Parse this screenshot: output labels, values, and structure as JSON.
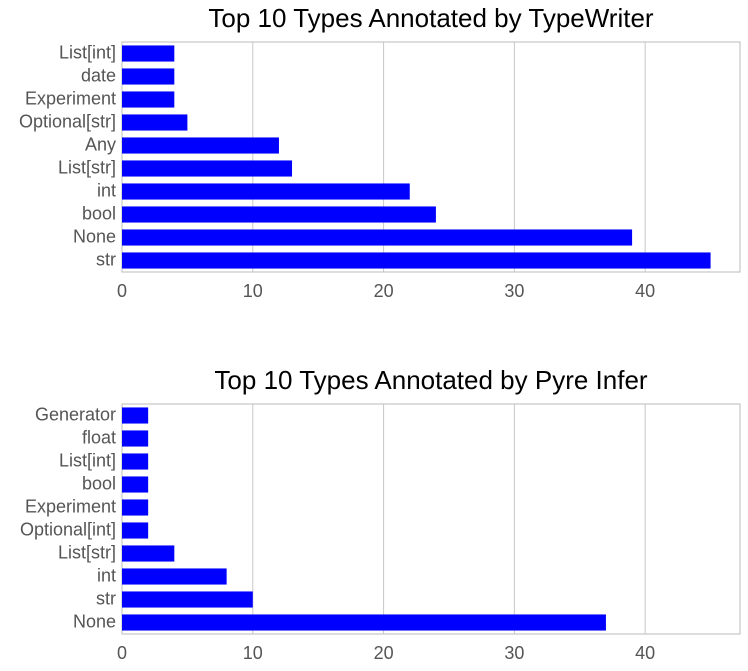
{
  "chart_data": [
    {
      "type": "bar",
      "orientation": "horizontal",
      "title": "Top 10 Types Annotated by TypeWriter",
      "categories": [
        "List[int]",
        "date",
        "Experiment",
        "Optional[str]",
        "Any",
        "List[str]",
        "int",
        "bool",
        "None",
        "str"
      ],
      "values": [
        4,
        4,
        4,
        5,
        12,
        13,
        22,
        24,
        39,
        45
      ],
      "color": "#0000ff",
      "xlim": [
        0,
        47.25
      ],
      "xticks": [
        0,
        10,
        20,
        30,
        40
      ],
      "grid": true
    },
    {
      "type": "bar",
      "orientation": "horizontal",
      "title": "Top 10 Types Annotated by Pyre Infer",
      "categories": [
        "Generator",
        "float",
        "List[int]",
        "bool",
        "Experiment",
        "Optional[int]",
        "List[str]",
        "int",
        "str",
        "None"
      ],
      "values": [
        2,
        2,
        2,
        2,
        2,
        2,
        4,
        8,
        10,
        37
      ],
      "color": "#0000ff",
      "xlim": [
        0,
        47.25
      ],
      "xticks": [
        0,
        10,
        20,
        30,
        40
      ],
      "grid": true
    }
  ]
}
